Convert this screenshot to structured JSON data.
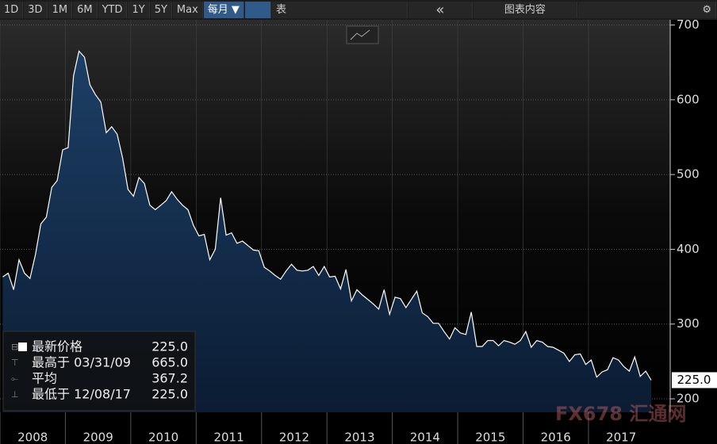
{
  "toolbar": {
    "buttons": [
      "1D",
      "3D",
      "1M",
      "6M",
      "YTD",
      "1Y",
      "5Y",
      "Max"
    ],
    "frequency": "每月 ▼",
    "table": "表",
    "collapse": "«",
    "chart_content": "图表内容"
  },
  "chart_data": {
    "type": "area",
    "color": "#ffffff",
    "fill": "#123056",
    "xlim": [
      2008,
      2018.25
    ],
    "xticks": [
      2008,
      2009,
      2010,
      2011,
      2012,
      2013,
      2014,
      2015,
      2016,
      2017
    ],
    "ylim": [
      182,
      708
    ],
    "yticks": [
      200,
      300,
      400,
      500,
      600,
      700
    ],
    "grid": true,
    "values": [
      363,
      368,
      346,
      386,
      368,
      361,
      393,
      434,
      443,
      483,
      492,
      533,
      536,
      632,
      665,
      657,
      620,
      607,
      597,
      556,
      564,
      554,
      522,
      480,
      471,
      496,
      488,
      459,
      453,
      459,
      465,
      477,
      467,
      459,
      453,
      432,
      418,
      420,
      386,
      400,
      469,
      419,
      422,
      408,
      411,
      405,
      399,
      398,
      376,
      371,
      365,
      360,
      371,
      380,
      372,
      371,
      372,
      377,
      365,
      377,
      363,
      364,
      347,
      373,
      331,
      346,
      339,
      333,
      327,
      320,
      346,
      313,
      336,
      334,
      322,
      333,
      344,
      315,
      310,
      301,
      301,
      290,
      280,
      295,
      288,
      286,
      316,
      270,
      270,
      278,
      278,
      271,
      278,
      276,
      273,
      278,
      290,
      269,
      278,
      276,
      270,
      269,
      265,
      261,
      250,
      259,
      260,
      246,
      252,
      229,
      236,
      239,
      255,
      252,
      243,
      237,
      256,
      230,
      237,
      225
    ],
    "last_label": "225.0",
    "stats": [
      {
        "label": "最新价格",
        "value": "225.0"
      },
      {
        "label": "最高于 03/31/09",
        "value": "665.0"
      },
      {
        "label": "平均",
        "value": "367.2"
      },
      {
        "label": "最低于 12/08/17",
        "value": "225.0"
      }
    ]
  },
  "watermark": "FX678 汇通网"
}
